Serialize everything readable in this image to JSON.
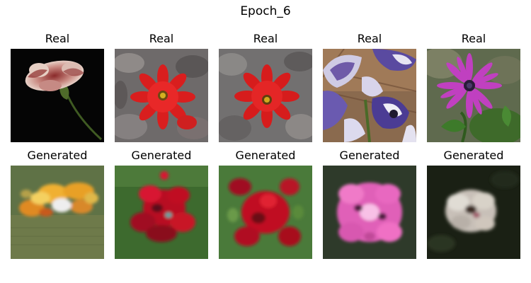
{
  "figure": {
    "title": "Epoch_6"
  },
  "rows": [
    {
      "label": "Real",
      "panels": [
        {
          "label": "Real",
          "depicts": "carnation flower on black background"
        },
        {
          "label": "Real",
          "depicts": "red dahlia among grey-green leaves"
        },
        {
          "label": "Real",
          "depicts": "red dahlia among grey-green leaves"
        },
        {
          "label": "Real",
          "depicts": "purple and white monkshood flowers"
        },
        {
          "label": "Real",
          "depicts": "purple daisy flower with green background"
        }
      ]
    },
    {
      "label": "Generated",
      "panels": [
        {
          "label": "Generated",
          "depicts": "blurry orange-yellow flower blob on green"
        },
        {
          "label": "Generated",
          "depicts": "blurry red flower blob on green"
        },
        {
          "label": "Generated",
          "depicts": "blurry red flower blob on green"
        },
        {
          "label": "Generated",
          "depicts": "blurry pink flower blob on dark background"
        },
        {
          "label": "Generated",
          "depicts": "blurry white flower blob on dark background"
        }
      ]
    }
  ]
}
